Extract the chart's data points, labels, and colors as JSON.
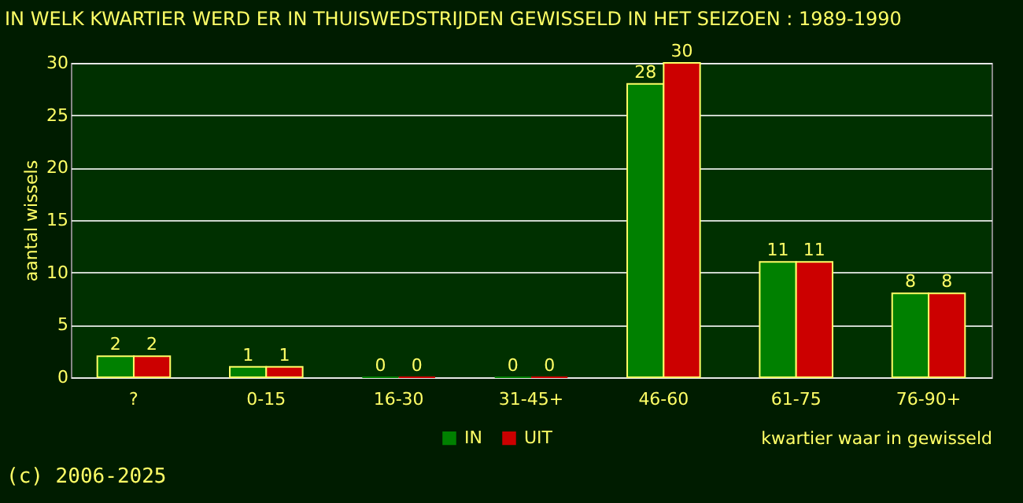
{
  "chart_data": {
    "type": "bar",
    "title": "IN WELK KWARTIER WERD ER IN THUISWEDSTRIJDEN GEWISSELD IN HET SEIZOEN : 1989-1990",
    "xlabel": "kwartier waar in gewisseld",
    "ylabel": "aantal wissels",
    "categories": [
      "?",
      "0-15",
      "16-30",
      "31-45+",
      "46-60",
      "61-75",
      "76-90+"
    ],
    "series": [
      {
        "name": "IN",
        "color": "#008000",
        "values": [
          2,
          1,
          0,
          0,
          28,
          11,
          8
        ]
      },
      {
        "name": "UIT",
        "color": "#cc0000",
        "values": [
          2,
          1,
          0,
          0,
          30,
          11,
          8
        ]
      }
    ],
    "ylim": [
      0,
      30
    ],
    "yticks": [
      0,
      5,
      10,
      15,
      20,
      25,
      30
    ],
    "grid": "y",
    "legend": "bottom",
    "data_labels": true,
    "annotations": [
      "(c) 2006-2025"
    ]
  }
}
